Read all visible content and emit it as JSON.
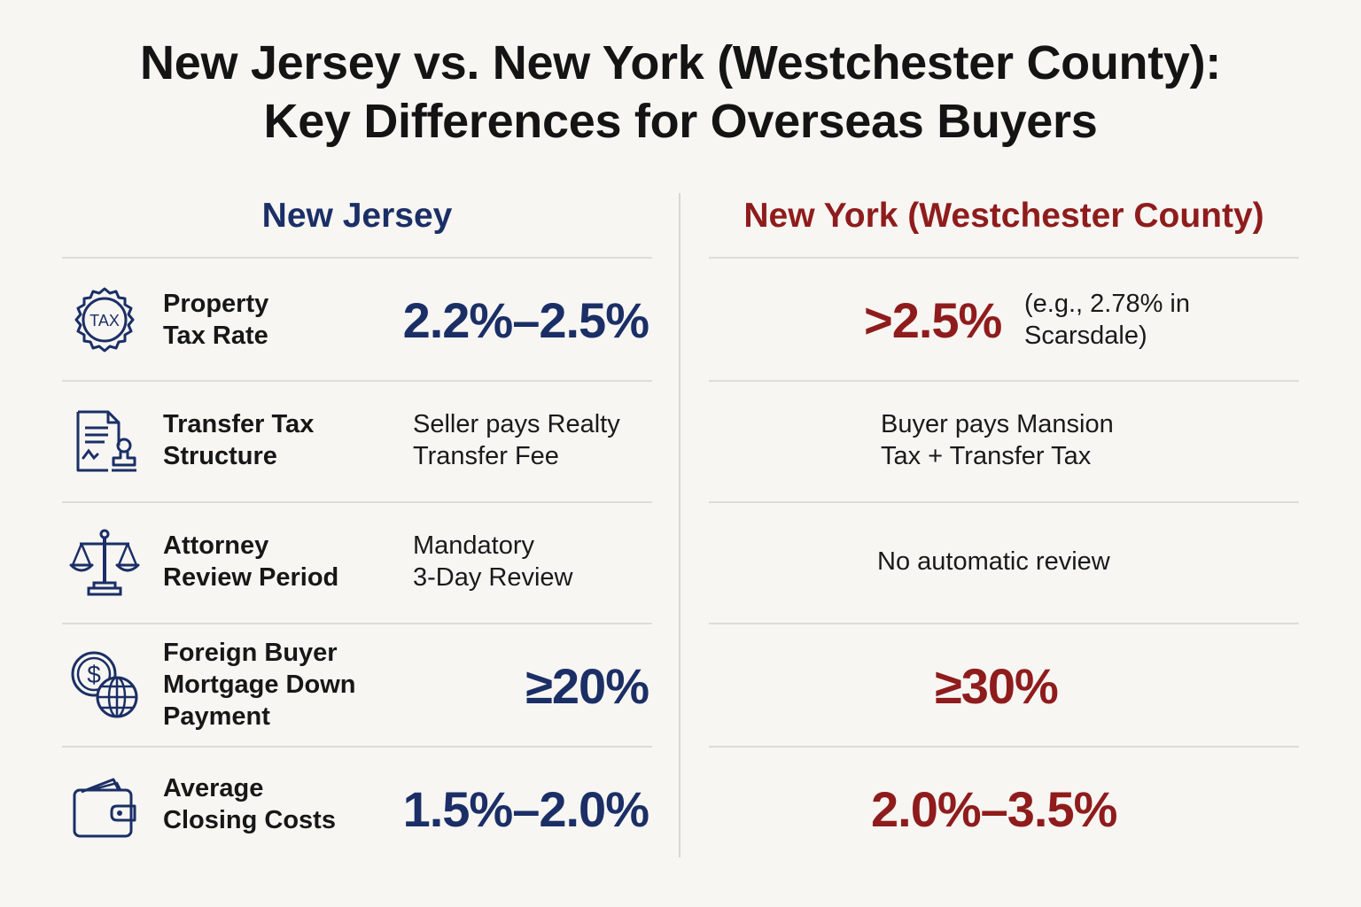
{
  "title": {
    "line1": "New Jersey vs. New York (Westchester County):",
    "line2": "Key Differences for Overseas Buyers"
  },
  "columns": {
    "nj": "New Jersey",
    "ny": "New York (Westchester County)"
  },
  "colors": {
    "nj": "#1b2f66",
    "ny": "#8f1c1c"
  },
  "rows": [
    {
      "icon": "tax-seal-icon",
      "icon_text": "TAX",
      "label": [
        "Property",
        "Tax Rate"
      ],
      "nj": "2.2%–2.5%",
      "ny": ">2.5%",
      "ny_note": [
        "(e.g., 2.78% in",
        "Scarsdale)"
      ]
    },
    {
      "icon": "document-stamp-icon",
      "label": [
        "Transfer Tax",
        "Structure"
      ],
      "nj": [
        "Seller pays Realty",
        "Transfer Fee"
      ],
      "ny": [
        "Buyer pays Mansion",
        "Tax + Transfer Tax"
      ]
    },
    {
      "icon": "scales-icon",
      "label": [
        "Attorney",
        "Review Period"
      ],
      "nj": [
        "Mandatory",
        "3-Day Review"
      ],
      "ny": "No automatic review"
    },
    {
      "icon": "dollar-globe-icon",
      "label": [
        "Foreign Buyer",
        "Mortgage Down",
        "Payment"
      ],
      "nj": "≥20%",
      "ny": "≥30%"
    },
    {
      "icon": "wallet-icon",
      "label": [
        "Average",
        "Closing Costs"
      ],
      "nj": "1.5%–2.0%",
      "ny": "2.0%–3.5%"
    }
  ]
}
